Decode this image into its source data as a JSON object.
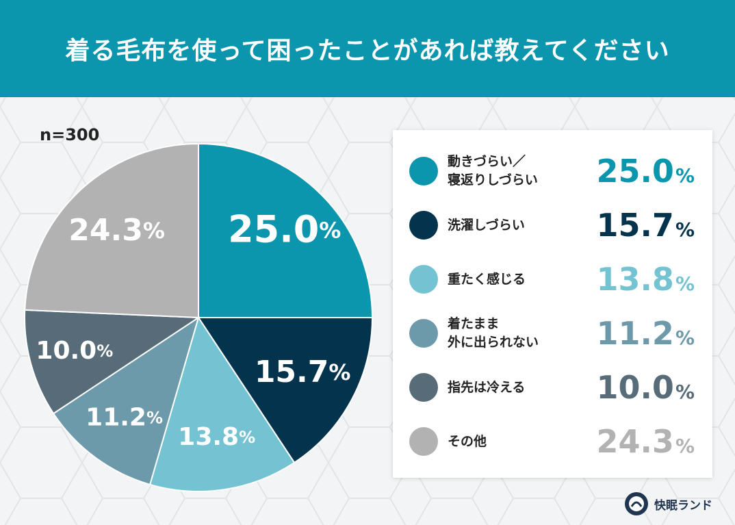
{
  "header": {
    "title": "着る毛布を使って困ったことがあれば教えてください"
  },
  "sample": {
    "label": "n=300"
  },
  "chart_data": {
    "type": "pie",
    "title": "着る毛布を使って困ったことがあれば教えてください",
    "unit": "%",
    "slices": [
      {
        "label": "動きづらい／\n寝返りしづらい",
        "value": 25.0,
        "display": "25.0",
        "color": "#0b96ad"
      },
      {
        "label": "洗濯しづらい",
        "value": 15.7,
        "display": "15.7",
        "color": "#04344d"
      },
      {
        "label": "重たく感じる",
        "value": 13.8,
        "display": "13.8",
        "color": "#74c3d3"
      },
      {
        "label": "着たまま\n外に出られない",
        "value": 11.2,
        "display": "11.2",
        "color": "#6d9aab"
      },
      {
        "label": "指先は冷える",
        "value": 10.0,
        "display": "10.0",
        "color": "#576c78"
      },
      {
        "label": "その他",
        "value": 24.3,
        "display": "24.3",
        "color": "#b2b2b2"
      }
    ]
  },
  "footer": {
    "brand": "快眠ランド"
  }
}
